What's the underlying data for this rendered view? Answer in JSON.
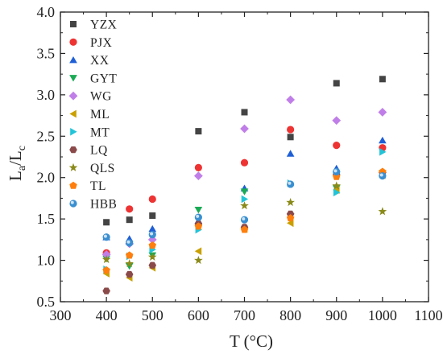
{
  "chart_data": {
    "type": "scatter",
    "xlabel": "T (°C)",
    "ylabel_main": "L",
    "ylabel_sub1": "a",
    "ylabel_sep": "/L",
    "ylabel_sub2": "c",
    "xlim": [
      300,
      1100
    ],
    "ylim": [
      0.5,
      4.0
    ],
    "xticks": [
      "300",
      "400",
      "500",
      "600",
      "700",
      "800",
      "900",
      "1000",
      "1100"
    ],
    "yticks": [
      "0.5",
      "1.0",
      "1.5",
      "2.0",
      "2.5",
      "3.0",
      "3.5",
      "4.0"
    ],
    "grid": false,
    "legend_position": "top-left",
    "series": [
      {
        "name": "YZX",
        "color": "#444444",
        "marker": "square",
        "points": [
          [
            400,
            1.46
          ],
          [
            450,
            1.49
          ],
          [
            500,
            1.54
          ],
          [
            600,
            2.56
          ],
          [
            700,
            2.79
          ],
          [
            800,
            2.49
          ],
          [
            900,
            3.14
          ],
          [
            1000,
            3.19
          ]
        ]
      },
      {
        "name": "PJX",
        "color": "#ee3333",
        "marker": "circle",
        "points": [
          [
            400,
            1.09
          ],
          [
            450,
            1.62
          ],
          [
            500,
            1.74
          ],
          [
            600,
            2.12
          ],
          [
            700,
            2.18
          ],
          [
            800,
            2.58
          ],
          [
            900,
            2.39
          ],
          [
            1000,
            2.36
          ]
        ]
      },
      {
        "name": "XX",
        "color": "#1f5fd6",
        "marker": "triangle-up",
        "points": [
          [
            400,
            1.28
          ],
          [
            450,
            1.26
          ],
          [
            500,
            1.38
          ],
          [
            600,
            1.48
          ],
          [
            700,
            1.87
          ],
          [
            800,
            2.29
          ],
          [
            900,
            2.11
          ],
          [
            1000,
            2.45
          ]
        ]
      },
      {
        "name": "GYT",
        "color": "#1aaa55",
        "marker": "triangle-down",
        "points": [
          [
            400,
            1.02
          ],
          [
            450,
            0.93
          ],
          [
            500,
            1.06
          ],
          [
            600,
            1.61
          ],
          [
            700,
            1.83
          ],
          [
            800,
            1.53
          ],
          [
            900,
            1.87
          ],
          [
            1000,
            2.05
          ]
        ]
      },
      {
        "name": "WG",
        "color": "#c07fe8",
        "marker": "diamond",
        "points": [
          [
            400,
            1.07
          ],
          [
            450,
            1.2
          ],
          [
            500,
            1.25
          ],
          [
            600,
            2.02
          ],
          [
            700,
            2.59
          ],
          [
            800,
            2.94
          ],
          [
            900,
            2.69
          ],
          [
            1000,
            2.79
          ]
        ]
      },
      {
        "name": "ML",
        "color": "#c9a000",
        "marker": "triangle-left",
        "points": [
          [
            400,
            0.84
          ],
          [
            450,
            0.79
          ],
          [
            500,
            0.91
          ],
          [
            600,
            1.11
          ],
          [
            700,
            1.38
          ],
          [
            800,
            1.45
          ],
          [
            900,
            1.85
          ],
          [
            1000,
            2.03
          ]
        ]
      },
      {
        "name": "MT",
        "color": "#22c4d8",
        "marker": "triangle-right",
        "points": [
          [
            400,
            0.89
          ],
          [
            450,
            1.05
          ],
          [
            500,
            1.13
          ],
          [
            600,
            1.37
          ],
          [
            700,
            1.74
          ],
          [
            800,
            1.93
          ],
          [
            900,
            1.82
          ],
          [
            1000,
            2.31
          ]
        ]
      },
      {
        "name": "LQ",
        "color": "#8b4a4a",
        "marker": "hexagon",
        "points": [
          [
            400,
            0.63
          ],
          [
            450,
            0.83
          ],
          [
            500,
            0.94
          ],
          [
            600,
            1.44
          ],
          [
            700,
            1.4
          ],
          [
            800,
            1.56
          ],
          [
            900,
            2.04
          ],
          [
            1000,
            2.06
          ]
        ]
      },
      {
        "name": "QLS",
        "color": "#8a8a1a",
        "marker": "star",
        "points": [
          [
            400,
            1.01
          ],
          [
            450,
            0.96
          ],
          [
            500,
            1.04
          ],
          [
            600,
            1.0
          ],
          [
            700,
            1.66
          ],
          [
            800,
            1.7
          ],
          [
            900,
            1.9
          ],
          [
            1000,
            1.59
          ]
        ]
      },
      {
        "name": "TL",
        "color": "#ff7f0e",
        "marker": "pentagon",
        "points": [
          [
            400,
            0.88
          ],
          [
            450,
            1.06
          ],
          [
            500,
            1.18
          ],
          [
            600,
            1.41
          ],
          [
            700,
            1.37
          ],
          [
            800,
            1.51
          ],
          [
            900,
            2.01
          ],
          [
            1000,
            2.07
          ]
        ]
      },
      {
        "name": "HBB",
        "color": "#3a8fd0",
        "marker": "ball",
        "points": [
          [
            400,
            1.28
          ],
          [
            450,
            1.21
          ],
          [
            500,
            1.31
          ],
          [
            600,
            1.52
          ],
          [
            700,
            1.49
          ],
          [
            800,
            1.92
          ],
          [
            900,
            2.07
          ],
          [
            1000,
            2.02
          ]
        ]
      }
    ]
  }
}
